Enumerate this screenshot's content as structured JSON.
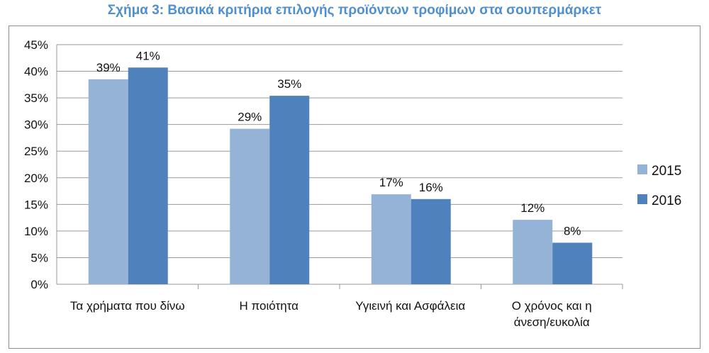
{
  "chart_data": {
    "type": "bar",
    "title": "Σχήμα 3: Βασικά κριτήρια επιλογής προϊόντων τροφίμων στα σουπερμάρκετ",
    "categories": [
      [
        "Τα χρήματα που δίνω"
      ],
      [
        "Η ποιότητα"
      ],
      [
        "Υγιεινή και Ασφάλεια"
      ],
      [
        "Ο χρόνος και η",
        "άνεση/ευκολία"
      ]
    ],
    "series": [
      {
        "name": "2015",
        "color": "#95b3d7",
        "values": [
          38.5,
          29.2,
          16.9,
          12.1
        ],
        "labels": [
          "39%",
          "29%",
          "17%",
          "12%"
        ]
      },
      {
        "name": "2016",
        "color": "#4f81bd",
        "values": [
          40.7,
          35.4,
          16.0,
          7.8
        ],
        "labels": [
          "41%",
          "35%",
          "16%",
          "8%"
        ]
      }
    ],
    "ylim": [
      0,
      45
    ],
    "ytick_step": 5,
    "ytick_labels": [
      "0%",
      "5%",
      "10%",
      "15%",
      "20%",
      "25%",
      "30%",
      "35%",
      "40%",
      "45%"
    ],
    "xlabel": "",
    "ylabel": "",
    "grid": true,
    "legend_position": "right"
  }
}
